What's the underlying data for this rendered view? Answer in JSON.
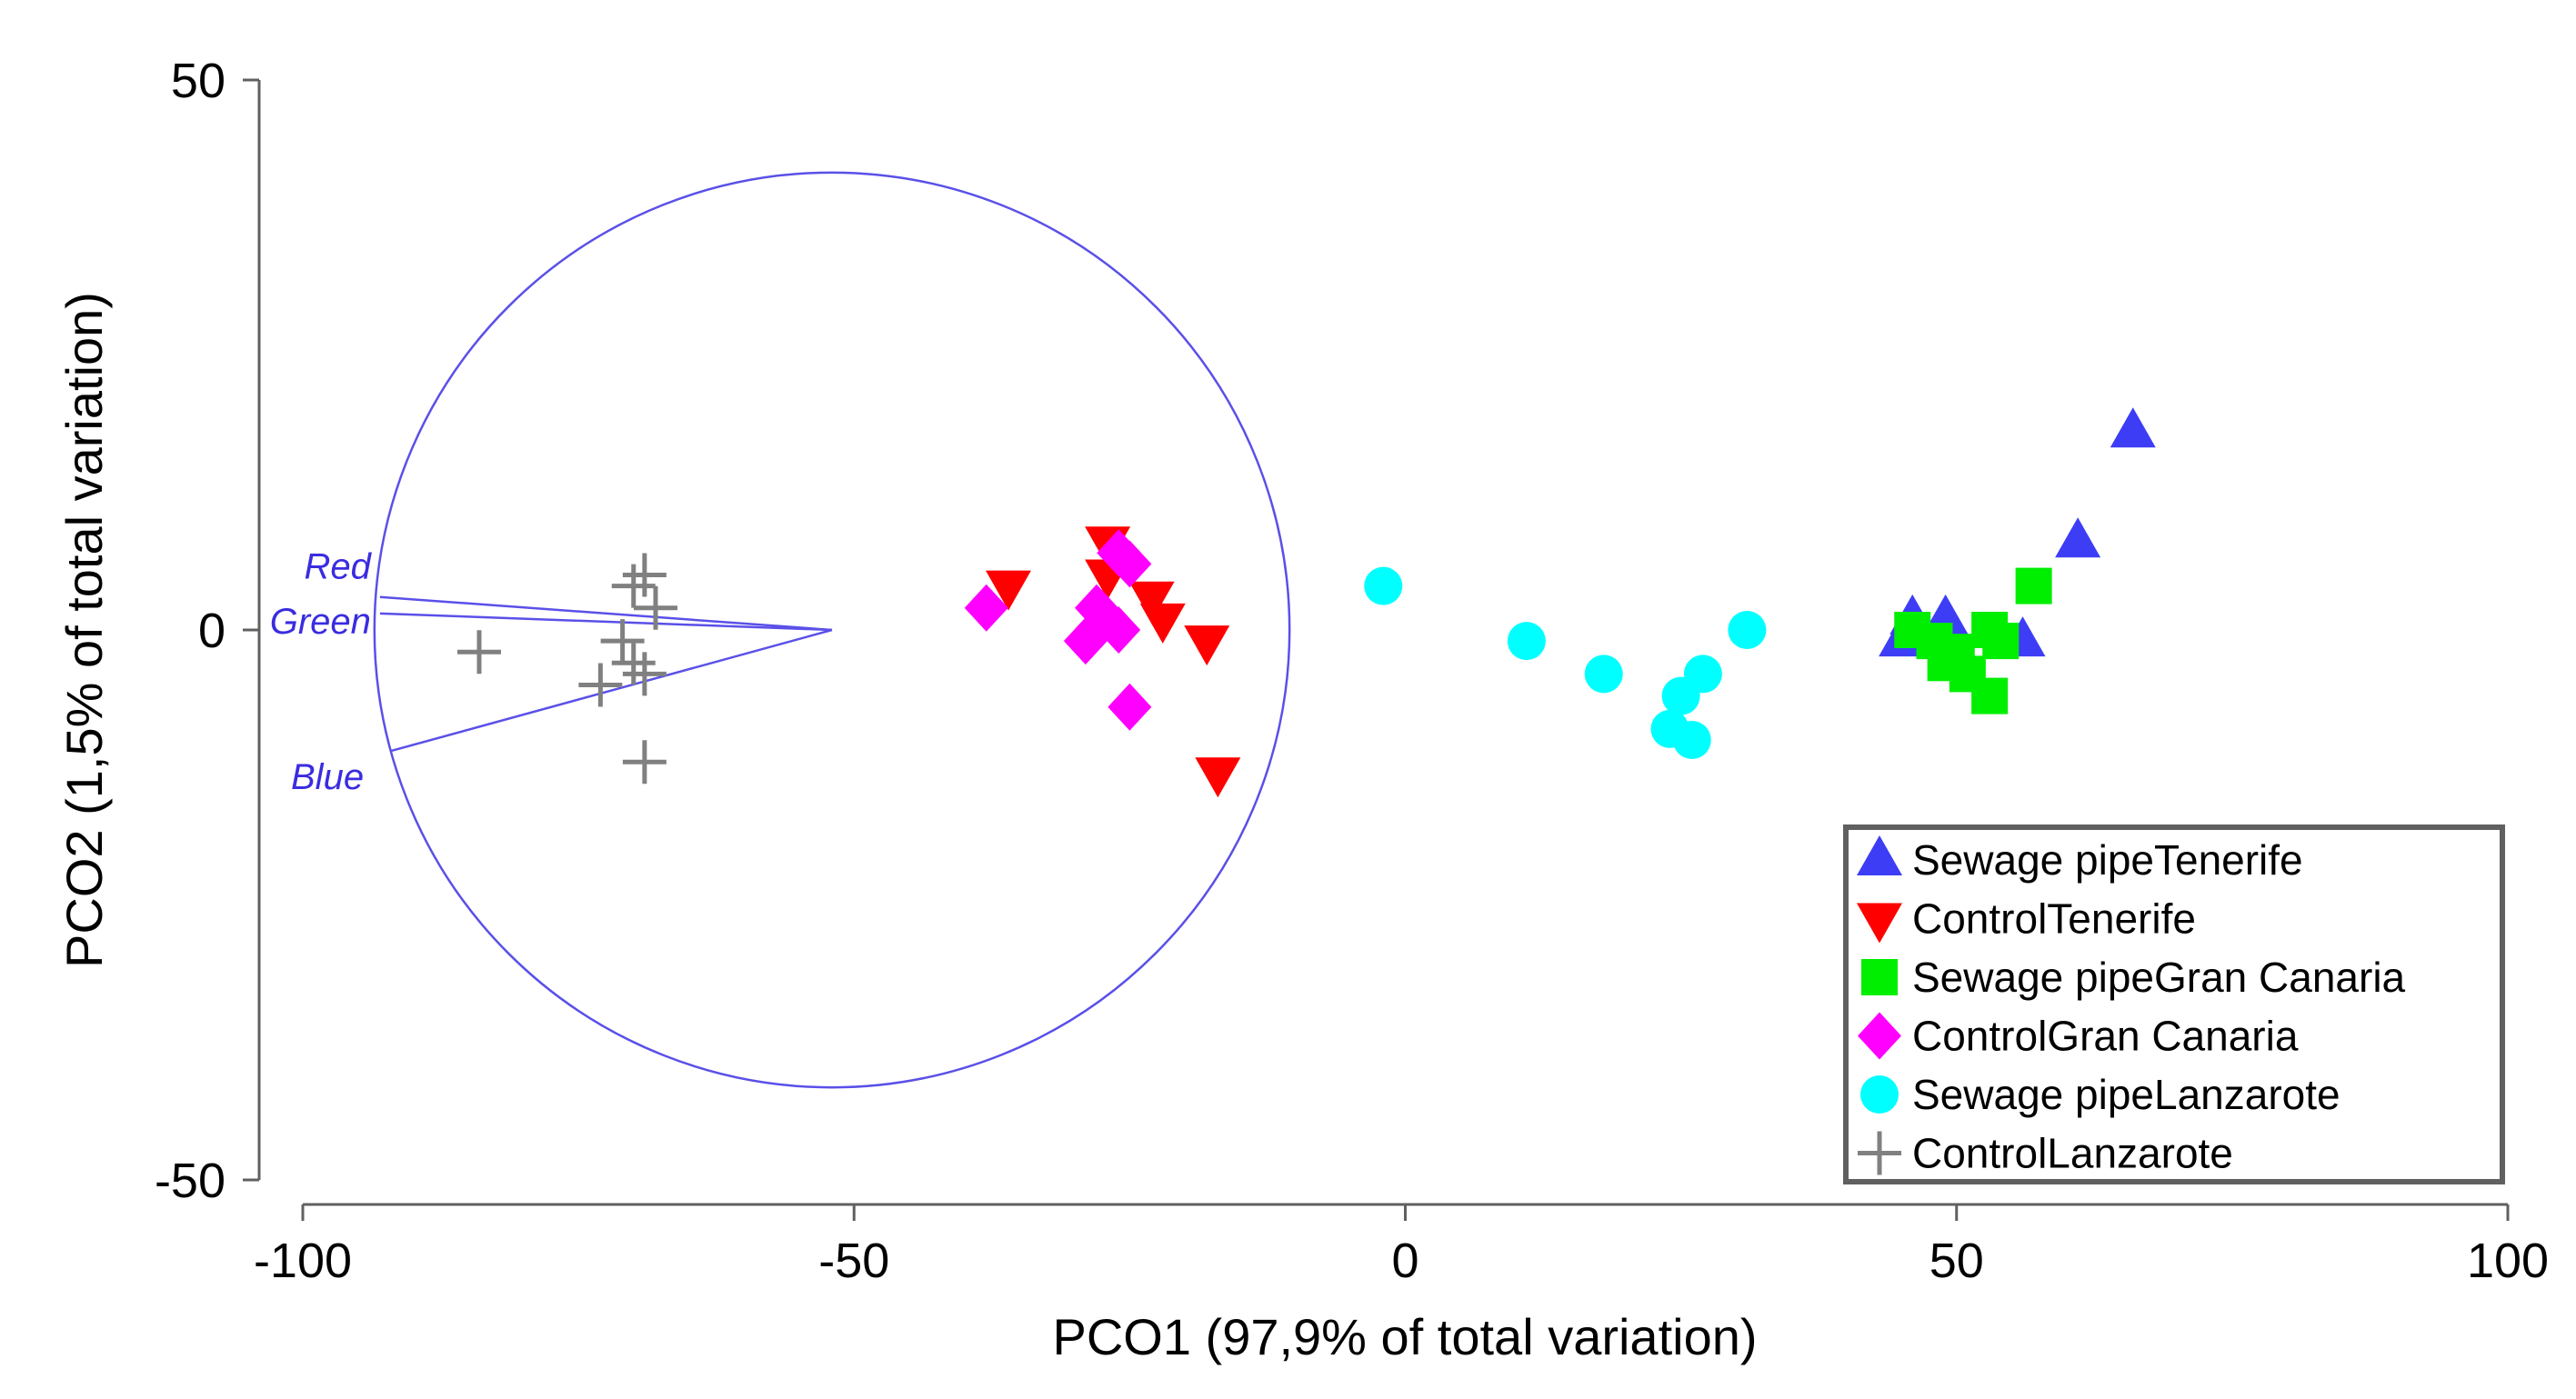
{
  "chart_data": {
    "type": "scatter",
    "title": "",
    "xlabel": "PCO1 (97,9% of total variation)",
    "ylabel": "PCO2 (1,5% of total variation)",
    "xlim": [
      -100,
      100
    ],
    "ylim": [
      -50,
      50
    ],
    "xticks": [
      -100,
      -50,
      0,
      50,
      100
    ],
    "yticks": [
      -50,
      0,
      50
    ],
    "xtick_labels": [
      "-100",
      "-50",
      "0",
      "50",
      "100"
    ],
    "ytick_labels": [
      "-50",
      "0",
      "50"
    ],
    "grid": false,
    "legend_position": "bottom-right",
    "series": [
      {
        "name": "Sewage pipeTenerife",
        "marker": "triangle-up",
        "color": "#3d3df5",
        "points": [
          [
            66,
            18
          ],
          [
            61,
            8
          ],
          [
            46,
            1
          ],
          [
            49,
            1
          ],
          [
            45,
            -1
          ],
          [
            56,
            -1
          ]
        ]
      },
      {
        "name": "ControlTenerife",
        "marker": "triangle-down",
        "color": "#ff0000",
        "points": [
          [
            -36,
            4
          ],
          [
            -27,
            8
          ],
          [
            -27,
            5
          ],
          [
            -23,
            3
          ],
          [
            -22,
            1
          ],
          [
            -18,
            -1
          ],
          [
            -17,
            -13
          ]
        ]
      },
      {
        "name": "Sewage pipeGran Canaria",
        "marker": "square",
        "color": "#00ee00",
        "points": [
          [
            57,
            4
          ],
          [
            46,
            0
          ],
          [
            48,
            -1
          ],
          [
            50,
            -2
          ],
          [
            53,
            0
          ],
          [
            54,
            -1
          ],
          [
            51,
            -4
          ],
          [
            53,
            -6
          ],
          [
            49,
            -3
          ]
        ]
      },
      {
        "name": "ControlGran Canaria",
        "marker": "diamond",
        "color": "#ff00ff",
        "points": [
          [
            -38,
            2
          ],
          [
            -26,
            7
          ],
          [
            -25,
            6
          ],
          [
            -28,
            2
          ],
          [
            -26,
            0
          ],
          [
            -29,
            -1
          ],
          [
            -25,
            -7
          ]
        ]
      },
      {
        "name": "Sewage pipeLanzarote",
        "marker": "circle",
        "color": "#00ffff",
        "points": [
          [
            -2,
            4
          ],
          [
            11,
            -1
          ],
          [
            18,
            -4
          ],
          [
            31,
            0
          ],
          [
            27,
            -4
          ],
          [
            25,
            -6
          ],
          [
            24,
            -9
          ],
          [
            26,
            -10
          ]
        ]
      },
      {
        "name": "ControlLanzarote",
        "marker": "plus",
        "color": "#808080",
        "points": [
          [
            -69,
            5
          ],
          [
            -70,
            4
          ],
          [
            -68,
            2
          ],
          [
            -84,
            -2
          ],
          [
            -71,
            -1
          ],
          [
            -70,
            -3
          ],
          [
            -69,
            -4
          ],
          [
            -73,
            -5
          ],
          [
            -69,
            -12
          ]
        ]
      }
    ],
    "correlation_circle": {
      "center": [
        -52,
        0
      ],
      "radius": 41.5,
      "color": "#5a50e8"
    },
    "vectors": [
      {
        "name": "Red",
        "end": [
          -93,
          3
        ]
      },
      {
        "name": "Green",
        "end": [
          -93,
          1.5
        ]
      },
      {
        "name": "Blue",
        "end": [
          -92,
          -11
        ]
      }
    ]
  }
}
